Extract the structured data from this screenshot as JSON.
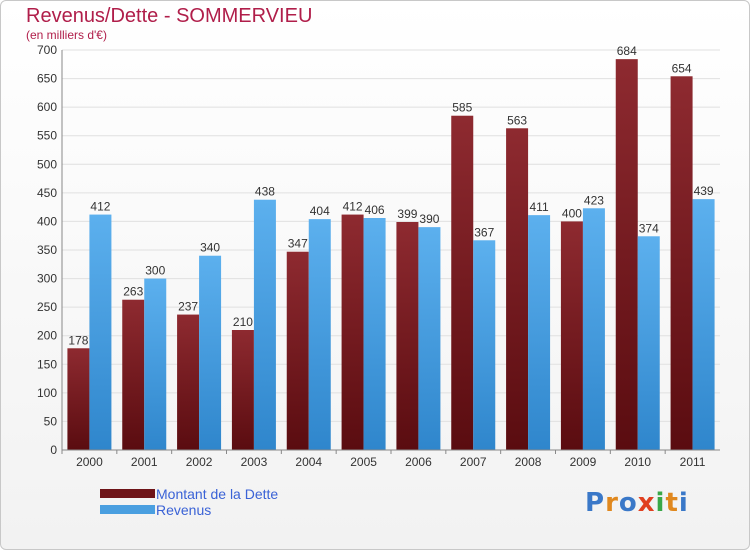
{
  "chart_data": {
    "type": "bar",
    "title": "Revenus/Dette - SOMMERVIEU",
    "subtitle": "(en milliers d'€)",
    "categories": [
      "2000",
      "2001",
      "2002",
      "2003",
      "2004",
      "2005",
      "2006",
      "2007",
      "2008",
      "2009",
      "2010",
      "2011"
    ],
    "series": [
      {
        "name": "Montant de la Dette",
        "color": "#7a1a1e",
        "values": [
          178,
          263,
          237,
          210,
          347,
          412,
          399,
          585,
          563,
          400,
          684,
          654
        ]
      },
      {
        "name": "Revenus",
        "color": "#4a9fe0",
        "values": [
          412,
          300,
          340,
          438,
          404,
          406,
          390,
          367,
          411,
          423,
          374,
          439
        ]
      }
    ],
    "ylim": [
      0,
      700
    ],
    "yticks": [
      0,
      50,
      100,
      150,
      200,
      250,
      300,
      350,
      400,
      450,
      500,
      550,
      600,
      650,
      700
    ],
    "grid": true,
    "legend_position": "bottom-left"
  },
  "logo": {
    "text": "Proxiti",
    "letter_colors": [
      "#3a78c8",
      "#e0881e",
      "#3a78c8",
      "#e04020",
      "#3aa848",
      "#e0881e",
      "#3a78c8"
    ]
  }
}
